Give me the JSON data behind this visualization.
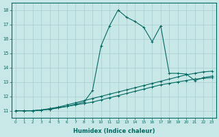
{
  "bg_color": "#c8e8e8",
  "grid_color": "#a8cece",
  "line_color": "#006860",
  "xlabel": "Humidex (Indice chaleur)",
  "xlim": [
    -0.5,
    23.5
  ],
  "ylim": [
    10.5,
    18.5
  ],
  "yticks": [
    11,
    12,
    13,
    14,
    15,
    16,
    17,
    18
  ],
  "xticks": [
    0,
    1,
    2,
    3,
    4,
    5,
    6,
    7,
    8,
    9,
    10,
    11,
    12,
    13,
    14,
    15,
    16,
    17,
    18,
    19,
    20,
    21,
    22,
    23
  ],
  "curve1_x": [
    0,
    1,
    2,
    3,
    4,
    5,
    6,
    7,
    8,
    9,
    10,
    11,
    12,
    13,
    14,
    15,
    16,
    17,
    18,
    19,
    20,
    21,
    22,
    23
  ],
  "curve1_y": [
    11,
    11,
    11,
    11.05,
    11.1,
    11.2,
    11.3,
    11.4,
    11.5,
    11.6,
    11.75,
    11.9,
    12.05,
    12.2,
    12.35,
    12.5,
    12.65,
    12.8,
    12.9,
    13.0,
    13.1,
    13.2,
    13.25,
    13.3
  ],
  "curve2_x": [
    0,
    1,
    2,
    3,
    4,
    5,
    6,
    7,
    8,
    9,
    10,
    11,
    12,
    13,
    14,
    15,
    16,
    17,
    18,
    19,
    20,
    21,
    22,
    23
  ],
  "curve2_y": [
    11,
    11,
    11,
    11.05,
    11.15,
    11.25,
    11.4,
    11.55,
    11.7,
    11.85,
    12.0,
    12.15,
    12.3,
    12.45,
    12.6,
    12.75,
    12.9,
    13.05,
    13.2,
    13.35,
    13.5,
    13.6,
    13.7,
    13.75
  ],
  "curve3_x": [
    0,
    1,
    2,
    3,
    4,
    5,
    6,
    7,
    8,
    9,
    10,
    11,
    12,
    13,
    14,
    15,
    16,
    17,
    18,
    19,
    20,
    21,
    22,
    23
  ],
  "curve3_y": [
    11,
    11,
    11,
    11.05,
    11.1,
    11.2,
    11.3,
    11.45,
    11.6,
    12.4,
    15.5,
    16.9,
    18.0,
    17.5,
    17.2,
    16.8,
    15.8,
    16.9,
    13.6,
    13.6,
    13.55,
    13.1,
    13.3,
    13.4
  ]
}
